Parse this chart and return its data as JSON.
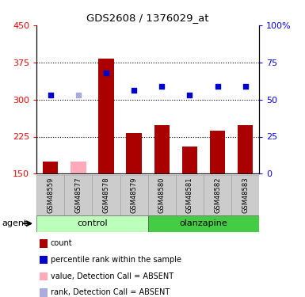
{
  "title": "GDS2608 / 1376029_at",
  "samples": [
    "GSM48559",
    "GSM48577",
    "GSM48578",
    "GSM48579",
    "GSM48580",
    "GSM48581",
    "GSM48582",
    "GSM48583"
  ],
  "bar_values": [
    175,
    175,
    383,
    232,
    248,
    205,
    237,
    248
  ],
  "bar_absent": [
    false,
    true,
    false,
    false,
    false,
    false,
    false,
    false
  ],
  "dot_values_pct": [
    53,
    53,
    68,
    56,
    59,
    53,
    59,
    59
  ],
  "dot_absent": [
    false,
    true,
    false,
    false,
    false,
    false,
    false,
    false
  ],
  "ylim_left": [
    150,
    450
  ],
  "ylim_right": [
    0,
    100
  ],
  "yticks_left": [
    150,
    225,
    300,
    375,
    450
  ],
  "yticks_right": [
    0,
    25,
    50,
    75,
    100
  ],
  "ytick_labels_left": [
    "150",
    "225",
    "300",
    "375",
    "450"
  ],
  "ytick_labels_right": [
    "0",
    "25",
    "50",
    "75",
    "100%"
  ],
  "hlines": [
    225,
    300,
    375
  ],
  "groups": [
    {
      "label": "control",
      "start": 0,
      "end": 3,
      "color_light": "#ccffcc",
      "color_dark": "#55cc55"
    },
    {
      "label": "olanzapine",
      "start": 4,
      "end": 7,
      "color_light": "#99ee99",
      "color_dark": "#55cc55"
    }
  ],
  "bar_color_present": "#aa0000",
  "bar_color_absent": "#ffaabb",
  "dot_color_present": "#0000cc",
  "dot_color_absent": "#aaaadd",
  "dot_size": 22,
  "bar_width": 0.55,
  "legend_items": [
    {
      "label": "count",
      "color": "#aa0000",
      "type": "rect"
    },
    {
      "label": "percentile rank within the sample",
      "color": "#0000cc",
      "type": "rect"
    },
    {
      "label": "value, Detection Call = ABSENT",
      "color": "#ffaabb",
      "type": "rect"
    },
    {
      "label": "rank, Detection Call = ABSENT",
      "color": "#aaaadd",
      "type": "rect"
    }
  ]
}
